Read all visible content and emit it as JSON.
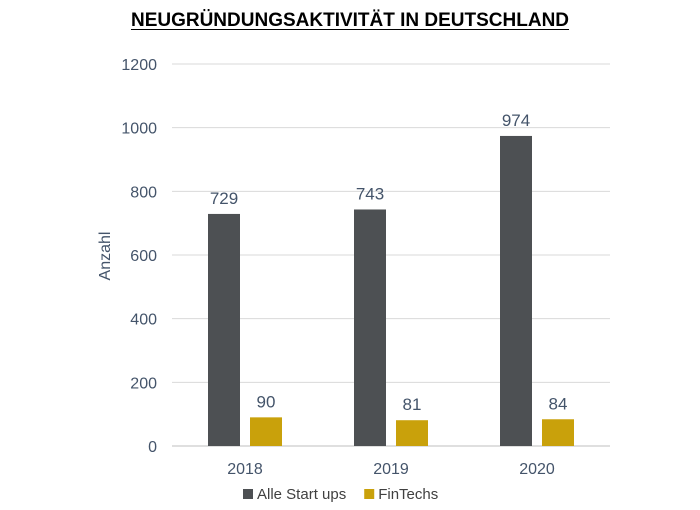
{
  "chart_data": {
    "type": "bar",
    "title": "NEUGRÜNDUNGSAKTIVITÄT IN DEUTSCHLAND",
    "xlabel": "",
    "ylabel": "Anzahl",
    "ylim": [
      0,
      1200
    ],
    "yticks": [
      0,
      200,
      400,
      600,
      800,
      1000,
      1200
    ],
    "categories": [
      "2018",
      "2019",
      "2020"
    ],
    "series": [
      {
        "name": "Alle Start ups",
        "values": [
          729,
          743,
          974
        ],
        "color": "#4d5053"
      },
      {
        "name": "FinTechs",
        "values": [
          90,
          81,
          84
        ],
        "color": "#c9a10b"
      }
    ],
    "grid": true,
    "legend": "bottom",
    "label_color": "#44546a"
  }
}
